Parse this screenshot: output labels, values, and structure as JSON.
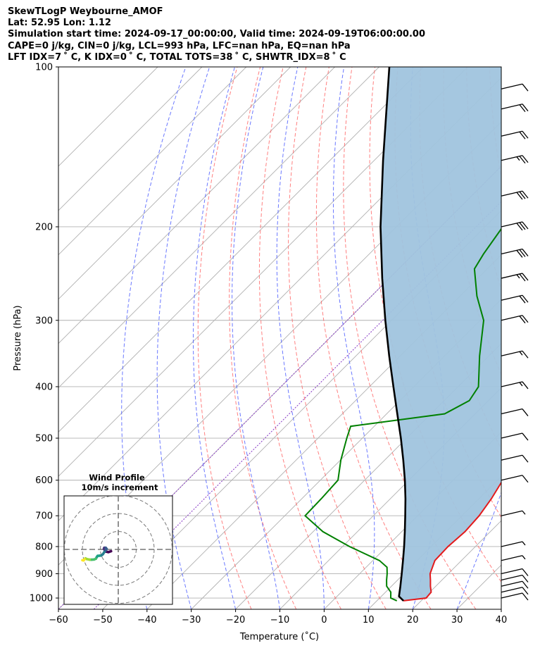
{
  "header": {
    "line1": "SkewTLogP Weybourne_AMOF",
    "line2": "Lat: 52.95   Lon: 1.12",
    "line3": "Simulation start time: 2024-09-17_00:00:00, Valid time: 2024-09-19T06:00:00.00",
    "line4": "CAPE=0 j/kg, CIN=0 j/kg, LCL=993 hPa, LFC=nan hPa, EQ=nan hPa",
    "line5": "LFT IDX=7 ˚ C, K IDX=0 ˚ C, TOTAL TOTS=38 ˚ C, SHWTR_IDX=8 ˚ C"
  },
  "colors": {
    "temperature": "#e31a1c",
    "dewpoint": "#008000",
    "parcel": "#000000",
    "shade": "#a0c4de",
    "dry_adiabat": "#ff6060",
    "moist_adiabat": "#5060ff",
    "mixing_ratio": "#8e44c8",
    "isotherm": "#b0b0b0"
  },
  "chart_data": {
    "type": "line",
    "xlabel": "Temperature (˚C)",
    "ylabel": "Pressure (hPa)",
    "xlim": [
      -60,
      40
    ],
    "ylim": [
      1050,
      100
    ],
    "yscale": "log",
    "grid": true,
    "x_ticks": [
      "−60",
      "−50",
      "−40",
      "−30",
      "−20",
      "−10",
      "0",
      "10",
      "20",
      "30",
      "40"
    ],
    "y_ticks": [
      "100",
      "200",
      "300",
      "400",
      "500",
      "600",
      "700",
      "800",
      "900",
      "1000"
    ],
    "series": [
      {
        "role": "temperature",
        "points": [
          [
            1012,
            16.0
          ],
          [
            1000,
            20.5
          ],
          [
            975,
            20.3
          ],
          [
            950,
            18.8
          ],
          [
            925,
            17.4
          ],
          [
            900,
            15.9
          ],
          [
            850,
            14.0
          ],
          [
            800,
            13.8
          ],
          [
            750,
            14.3
          ],
          [
            700,
            13.9
          ],
          [
            650,
            12.8
          ],
          [
            600,
            11.2
          ],
          [
            550,
            9.6
          ],
          [
            500,
            7.6
          ],
          [
            475,
            4.4
          ],
          [
            450,
            1.8
          ],
          [
            425,
            -1.4
          ],
          [
            400,
            -4.0
          ],
          [
            350,
            -10.4
          ],
          [
            300,
            -17.2
          ],
          [
            275,
            -22.4
          ],
          [
            250,
            -28.0
          ],
          [
            225,
            -33.7
          ],
          [
            210,
            -37.2
          ],
          [
            200,
            -37.3
          ],
          [
            175,
            -41.8
          ],
          [
            160,
            -45.0
          ],
          [
            150,
            -45.2
          ],
          [
            140,
            -44.1
          ],
          [
            120,
            -39.5
          ],
          [
            110,
            -37.3
          ],
          [
            100,
            -34.9
          ]
        ]
      },
      {
        "role": "dewpoint",
        "points": [
          [
            1012,
            14.5
          ],
          [
            1000,
            12.5
          ],
          [
            975,
            11.2
          ],
          [
            950,
            8.9
          ],
          [
            925,
            7.5
          ],
          [
            900,
            6.2
          ],
          [
            875,
            4.7
          ],
          [
            850,
            1.5
          ],
          [
            800,
            -8.4
          ],
          [
            750,
            -17.8
          ],
          [
            700,
            -25.4
          ],
          [
            650,
            -25.6
          ],
          [
            600,
            -26.0
          ],
          [
            550,
            -29.9
          ],
          [
            500,
            -33.5
          ],
          [
            475,
            -35.3
          ],
          [
            450,
            -16.9
          ],
          [
            425,
            -14.3
          ],
          [
            400,
            -15.4
          ],
          [
            350,
            -22.1
          ],
          [
            300,
            -29.2
          ],
          [
            270,
            -36.2
          ],
          [
            240,
            -42.9
          ],
          [
            225,
            -44.2
          ],
          [
            200,
            -46.0
          ],
          [
            180,
            -47.2
          ],
          [
            165,
            -49.6
          ],
          [
            150,
            -53.2
          ],
          [
            140,
            -57.0
          ],
          [
            135,
            -60.5
          ],
          [
            120,
            -61.0
          ],
          [
            100,
            -64.2
          ]
        ]
      },
      {
        "role": "parcel",
        "points": [
          [
            1012,
            16.0
          ],
          [
            993,
            14.0
          ],
          [
            950,
            12.0
          ],
          [
            900,
            9.5
          ],
          [
            850,
            6.8
          ],
          [
            800,
            3.9
          ],
          [
            750,
            0.7
          ],
          [
            700,
            -2.8
          ],
          [
            650,
            -6.6
          ],
          [
            600,
            -10.9
          ],
          [
            550,
            -15.8
          ],
          [
            500,
            -21.3
          ],
          [
            450,
            -27.6
          ],
          [
            400,
            -34.6
          ],
          [
            350,
            -42.5
          ],
          [
            300,
            -51.4
          ],
          [
            250,
            -61.6
          ],
          [
            200,
            -73.6
          ],
          [
            150,
            -88.0
          ],
          [
            100,
            -107.7
          ]
        ]
      }
    ],
    "dry_adiabats": [
      -20,
      -10,
      0,
      10,
      20,
      30,
      40,
      50,
      60,
      70,
      80,
      90,
      100,
      110,
      120
    ],
    "moist_adiabats": [
      -40,
      -30,
      -20,
      -10,
      0,
      10,
      20,
      30,
      40
    ],
    "mixing_ratio_lines": [
      -60,
      -52
    ],
    "wind_barbs": [
      {
        "p": 1000,
        "flags": [
          1.0
        ]
      },
      {
        "p": 975,
        "flags": [
          1.0
        ]
      },
      {
        "p": 950,
        "flags": [
          1.0
        ]
      },
      {
        "p": 925,
        "flags": [
          1.0
        ]
      },
      {
        "p": 900,
        "flags": [
          1.0
        ]
      },
      {
        "p": 850,
        "flags": [
          0.5
        ]
      },
      {
        "p": 800,
        "flags": [
          0.5
        ]
      },
      {
        "p": 700,
        "flags": [
          0.5
        ]
      },
      {
        "p": 600,
        "flags": [
          1.0
        ]
      },
      {
        "p": 550,
        "flags": [
          1.0
        ]
      },
      {
        "p": 500,
        "flags": [
          1.0
        ]
      },
      {
        "p": 450,
        "flags": [
          1.0
        ]
      },
      {
        "p": 400,
        "flags": [
          1.0,
          0.5
        ]
      },
      {
        "p": 350,
        "flags": [
          1.0,
          0.5
        ]
      },
      {
        "p": 300,
        "flags": [
          1.0,
          1.0
        ]
      },
      {
        "p": 275,
        "flags": [
          1.0,
          1.0
        ]
      },
      {
        "p": 250,
        "flags": [
          1.0,
          1.0,
          0.5
        ]
      },
      {
        "p": 225,
        "flags": [
          1.0,
          1.0,
          1.0
        ]
      },
      {
        "p": 200,
        "flags": [
          1.0,
          1.0,
          1.0
        ]
      },
      {
        "p": 175,
        "flags": [
          1.0,
          1.0,
          1.0
        ]
      },
      {
        "p": 150,
        "flags": [
          1.0,
          1.0,
          0.5
        ]
      },
      {
        "p": 135,
        "flags": [
          1.0,
          1.0
        ]
      },
      {
        "p": 120,
        "flags": [
          1.0,
          1.0
        ]
      },
      {
        "p": 110,
        "flags": [
          1.0
        ]
      }
    ],
    "hodograph": {
      "title": "Wind Profile",
      "subtitle": "10m/s increment",
      "ring_step_ms": 10,
      "rings": 3,
      "points": [
        [
          -4.0,
          -1.0
        ],
        [
          -5.5,
          -1.5
        ],
        [
          -6.8,
          -1.2
        ],
        [
          -7.5,
          -0.5
        ],
        [
          -8.0,
          0.3
        ],
        [
          -7.8,
          0.9
        ],
        [
          -7.0,
          0.9
        ],
        [
          -6.5,
          0.3
        ],
        [
          -7.0,
          -0.6
        ],
        [
          -7.8,
          -1.5
        ],
        [
          -8.6,
          -2.7
        ],
        [
          -9.5,
          -3.4
        ],
        [
          -10.5,
          -3.5
        ],
        [
          -11.5,
          -3.6
        ],
        [
          -12.0,
          -4.3
        ],
        [
          -12.5,
          -5.2
        ],
        [
          -13.5,
          -5.6
        ],
        [
          -14.8,
          -5.7
        ],
        [
          -16.0,
          -5.7
        ],
        [
          -17.5,
          -5.4
        ],
        [
          -18.3,
          -5.0
        ],
        [
          -18.8,
          -5.5
        ],
        [
          -19.3,
          -6.1
        ],
        [
          -20.0,
          -6.0
        ]
      ]
    }
  }
}
